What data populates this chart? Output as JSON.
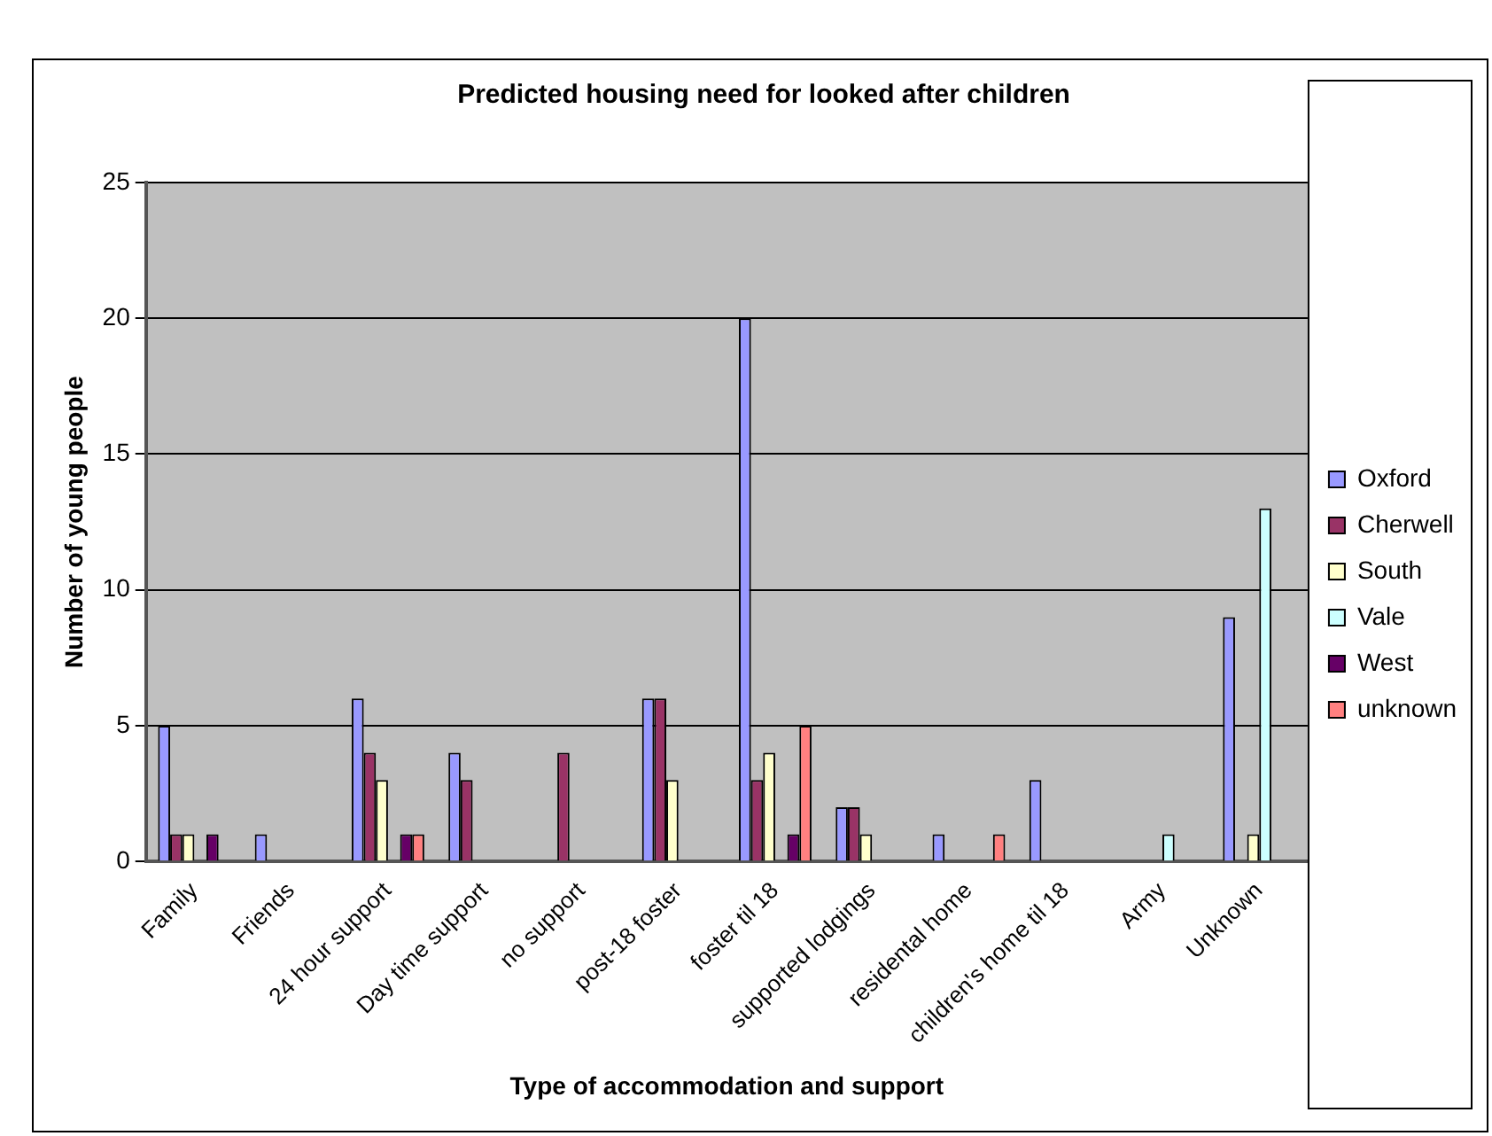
{
  "chart_data": {
    "type": "bar",
    "title": "Predicted housing need for looked after children",
    "xlabel": "Type of accommodation and support",
    "ylabel": "Number of young people",
    "categories": [
      "Family",
      "Friends",
      "24 hour support",
      "Day time support",
      "no support",
      "post-18 foster",
      "foster til 18",
      "supported lodgings",
      "residental home",
      "children's home til 18",
      "Army",
      "Unknown"
    ],
    "series": [
      {
        "name": "Oxford",
        "color": "#9999ff",
        "values": [
          5,
          1,
          6,
          4,
          0,
          6,
          20,
          2,
          1,
          3,
          0,
          9
        ]
      },
      {
        "name": "Cherwell",
        "color": "#993366",
        "values": [
          1,
          0,
          4,
          3,
          4,
          6,
          3,
          2,
          0,
          0,
          0,
          0
        ]
      },
      {
        "name": "South",
        "color": "#ffffcc",
        "values": [
          1,
          0,
          3,
          0,
          0,
          3,
          4,
          1,
          0,
          0,
          0,
          1
        ]
      },
      {
        "name": "Vale",
        "color": "#ccffff",
        "values": [
          0,
          0,
          0,
          0,
          0,
          0,
          0,
          0,
          0,
          0,
          1,
          13
        ]
      },
      {
        "name": "West",
        "color": "#660066",
        "values": [
          1,
          0,
          1,
          0,
          0,
          0,
          1,
          0,
          0,
          0,
          0,
          0
        ]
      },
      {
        "name": "unknown",
        "color": "#ff8080",
        "values": [
          0,
          0,
          1,
          0,
          0,
          0,
          5,
          0,
          1,
          0,
          0,
          0
        ]
      }
    ],
    "ylim": [
      0,
      25
    ],
    "yticks": [
      0,
      5,
      10,
      15,
      20,
      25
    ],
    "grid": "y",
    "legend": "right"
  }
}
